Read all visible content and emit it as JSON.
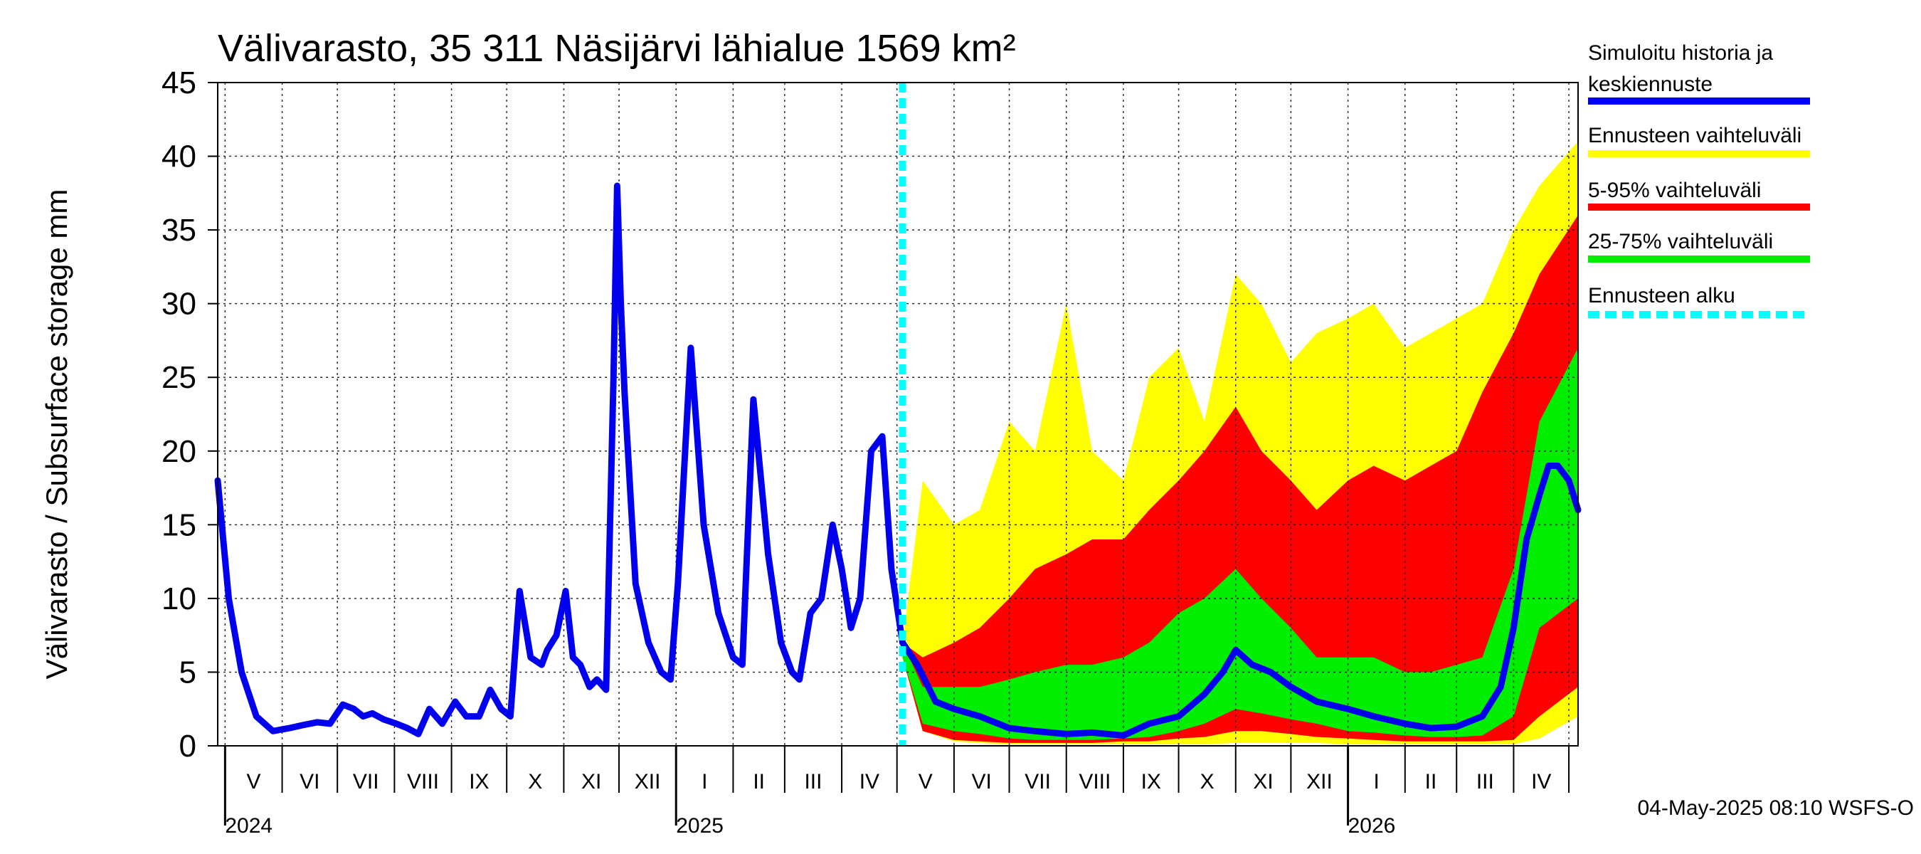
{
  "chart_data": {
    "type": "area",
    "title": "Välivarasto, 35 311 Näsijärvi lähialue 1569 km²",
    "ylabel": "Välivarasto / Subsurface storage  mm",
    "xlabel": "",
    "ylim": [
      0,
      45
    ],
    "yticks": [
      "0",
      "5",
      "10",
      "15",
      "20",
      "25",
      "30",
      "35",
      "40",
      "45"
    ],
    "grid": true,
    "x_range": [
      "2024-04-27",
      "2026-05-06"
    ],
    "forecast_start": "2025-05-04",
    "month_labels": [
      {
        "label": "V",
        "date": "2024-05-01"
      },
      {
        "label": "VI",
        "date": "2024-06-01"
      },
      {
        "label": "VII",
        "date": "2024-07-01"
      },
      {
        "label": "VIII",
        "date": "2024-08-01"
      },
      {
        "label": "IX",
        "date": "2024-09-01"
      },
      {
        "label": "X",
        "date": "2024-10-01"
      },
      {
        "label": "XI",
        "date": "2024-11-01"
      },
      {
        "label": "XII",
        "date": "2024-12-01"
      },
      {
        "label": "I",
        "date": "2025-01-01"
      },
      {
        "label": "II",
        "date": "2025-02-01"
      },
      {
        "label": "III",
        "date": "2025-03-01"
      },
      {
        "label": "IV",
        "date": "2025-04-01"
      },
      {
        "label": "V",
        "date": "2025-05-01"
      },
      {
        "label": "VI",
        "date": "2025-06-01"
      },
      {
        "label": "VII",
        "date": "2025-07-01"
      },
      {
        "label": "VIII",
        "date": "2025-08-01"
      },
      {
        "label": "IX",
        "date": "2025-09-01"
      },
      {
        "label": "X",
        "date": "2025-10-01"
      },
      {
        "label": "XI",
        "date": "2025-11-01"
      },
      {
        "label": "XII",
        "date": "2025-12-01"
      },
      {
        "label": "I",
        "date": "2026-01-01"
      },
      {
        "label": "II",
        "date": "2026-02-01"
      },
      {
        "label": "III",
        "date": "2026-03-01"
      },
      {
        "label": "IV",
        "date": "2026-04-01"
      }
    ],
    "month_boundaries": [
      "2024-05-01",
      "2024-06-01",
      "2024-07-01",
      "2024-08-01",
      "2024-09-01",
      "2024-10-01",
      "2024-11-01",
      "2024-12-01",
      "2025-01-01",
      "2025-02-01",
      "2025-03-01",
      "2025-04-01",
      "2025-05-01",
      "2025-06-01",
      "2025-07-01",
      "2025-08-01",
      "2025-09-01",
      "2025-10-01",
      "2025-11-01",
      "2025-12-01",
      "2026-01-01",
      "2026-02-01",
      "2026-03-01",
      "2026-04-01",
      "2026-05-01"
    ],
    "year_labels": [
      {
        "label": "2024",
        "date": "2024-05-01"
      },
      {
        "label": "2025",
        "date": "2025-01-01"
      },
      {
        "label": "2026",
        "date": "2026-01-01"
      }
    ],
    "legend": [
      {
        "label_lines": [
          "Simuloitu historia ja",
          "keskiennuste"
        ],
        "color": "#0000ee",
        "style": "solid"
      },
      {
        "label_lines": [
          "Ennusteen vaihteluväli"
        ],
        "color": "#ffff00",
        "style": "solid"
      },
      {
        "label_lines": [
          "5-95% vaihteluväli"
        ],
        "color": "#ff0000",
        "style": "solid"
      },
      {
        "label_lines": [
          "25-75% vaihteluväli"
        ],
        "color": "#00ee00",
        "style": "solid"
      },
      {
        "label_lines": [
          "Ennusteen alku"
        ],
        "color": "#00ffff",
        "style": "dashed"
      }
    ],
    "legend_position": "right",
    "footer": "04-May-2025 08:10 WSFS-O",
    "series": [
      {
        "name": "Simuloitu historia ja keskiennuste",
        "color": "#0000ee",
        "x": [
          "2024-04-27",
          "2024-05-03",
          "2024-05-10",
          "2024-05-18",
          "2024-05-27",
          "2024-06-05",
          "2024-06-12",
          "2024-06-20",
          "2024-06-27",
          "2024-07-04",
          "2024-07-10",
          "2024-07-15",
          "2024-07-20",
          "2024-07-26",
          "2024-08-02",
          "2024-08-08",
          "2024-08-14",
          "2024-08-20",
          "2024-08-27",
          "2024-09-03",
          "2024-09-09",
          "2024-09-16",
          "2024-09-22",
          "2024-09-28",
          "2024-10-03",
          "2024-10-08",
          "2024-10-14",
          "2024-10-20",
          "2024-10-23",
          "2024-10-28",
          "2024-11-02",
          "2024-11-06",
          "2024-11-10",
          "2024-11-15",
          "2024-11-19",
          "2024-11-24",
          "2024-11-28",
          "2024-11-30",
          "2024-12-02",
          "2024-12-04",
          "2024-12-10",
          "2024-12-17",
          "2024-12-24",
          "2024-12-29",
          "2025-01-02",
          "2025-01-09",
          "2025-01-16",
          "2025-01-24",
          "2025-02-01",
          "2025-02-06",
          "2025-02-12",
          "2025-02-20",
          "2025-02-27",
          "2025-03-05",
          "2025-03-09",
          "2025-03-15",
          "2025-03-21",
          "2025-03-27",
          "2025-04-01",
          "2025-04-06",
          "2025-04-11",
          "2025-04-17",
          "2025-04-23",
          "2025-04-28",
          "2025-05-04",
          "2025-05-12",
          "2025-05-22",
          "2025-06-01",
          "2025-06-15",
          "2025-07-01",
          "2025-07-15",
          "2025-08-01",
          "2025-08-15",
          "2025-09-01",
          "2025-09-15",
          "2025-10-01",
          "2025-10-15",
          "2025-10-25",
          "2025-11-01",
          "2025-11-10",
          "2025-11-20",
          "2025-12-01",
          "2025-12-15",
          "2026-01-01",
          "2026-01-15",
          "2026-02-01",
          "2026-02-15",
          "2026-03-01",
          "2026-03-15",
          "2026-03-25",
          "2026-04-01",
          "2026-04-08",
          "2026-04-15",
          "2026-04-20",
          "2026-04-25",
          "2026-05-01",
          "2026-05-06"
        ],
        "y": [
          18,
          10,
          5,
          2,
          1,
          1.2,
          1.4,
          1.6,
          1.5,
          2.8,
          2.5,
          2,
          2.2,
          1.8,
          1.5,
          1.2,
          0.8,
          2.5,
          1.5,
          3,
          2,
          2,
          3.8,
          2.5,
          2,
          10.5,
          6,
          5.5,
          6.5,
          7.5,
          10.5,
          6,
          5.5,
          4,
          4.5,
          3.8,
          25,
          38,
          30,
          24,
          11,
          7,
          5,
          4.5,
          11,
          27,
          15,
          9,
          6,
          5.5,
          23.5,
          13,
          7,
          5,
          4.5,
          9,
          10,
          15,
          12,
          8,
          10,
          20,
          21,
          12,
          7,
          5.5,
          3,
          2.5,
          2,
          1.2,
          1,
          0.8,
          0.9,
          0.7,
          1.5,
          2,
          3.5,
          5,
          6.5,
          5.5,
          5,
          4,
          3,
          2.5,
          2,
          1.5,
          1.2,
          1.3,
          2,
          4,
          8,
          14,
          17,
          19,
          19,
          18,
          16
        ]
      },
      {
        "name": "Ennusteen vaihteluväli",
        "color": "#ffff00",
        "x": [
          "2025-05-04",
          "2025-05-15",
          "2025-06-01",
          "2025-06-15",
          "2025-07-01",
          "2025-07-15",
          "2025-08-01",
          "2025-08-15",
          "2025-09-01",
          "2025-09-15",
          "2025-10-01",
          "2025-10-15",
          "2025-11-01",
          "2025-11-15",
          "2025-12-01",
          "2025-12-15",
          "2026-01-01",
          "2026-01-15",
          "2026-02-01",
          "2026-02-15",
          "2026-03-01",
          "2026-03-15",
          "2026-04-01",
          "2026-04-15",
          "2026-05-06"
        ],
        "low": [
          6,
          1,
          0.3,
          0.2,
          0.1,
          0.1,
          0.1,
          0.1,
          0.1,
          0.1,
          0.1,
          0.1,
          0.2,
          0.2,
          0.2,
          0.2,
          0.1,
          0.1,
          0.1,
          0.1,
          0.1,
          0.1,
          0.1,
          0.5,
          2
        ],
        "high": [
          7,
          18,
          15,
          16,
          22,
          20,
          30,
          20,
          18,
          25,
          27,
          22,
          32,
          30,
          26,
          28,
          29,
          30,
          27,
          28,
          29,
          30,
          35,
          38,
          41
        ]
      },
      {
        "name": "5-95% vaihteluväli",
        "color": "#ff0000",
        "x": [
          "2025-05-04",
          "2025-05-15",
          "2025-06-01",
          "2025-06-15",
          "2025-07-01",
          "2025-07-15",
          "2025-08-01",
          "2025-08-15",
          "2025-09-01",
          "2025-09-15",
          "2025-10-01",
          "2025-10-15",
          "2025-11-01",
          "2025-11-15",
          "2025-12-01",
          "2025-12-15",
          "2026-01-01",
          "2026-01-15",
          "2026-02-01",
          "2026-02-15",
          "2026-03-01",
          "2026-03-15",
          "2026-04-01",
          "2026-04-15",
          "2026-05-06"
        ],
        "low": [
          6,
          1,
          0.4,
          0.3,
          0.2,
          0.2,
          0.2,
          0.2,
          0.3,
          0.3,
          0.5,
          0.6,
          1,
          1,
          0.8,
          0.6,
          0.5,
          0.4,
          0.3,
          0.3,
          0.3,
          0.3,
          0.4,
          2,
          4
        ],
        "high": [
          7,
          6,
          7,
          8,
          10,
          12,
          13,
          14,
          14,
          16,
          18,
          20,
          23,
          20,
          18,
          16,
          18,
          19,
          18,
          19,
          20,
          24,
          28,
          32,
          36
        ]
      },
      {
        "name": "25-75% vaihteluväli",
        "color": "#00ee00",
        "x": [
          "2025-05-04",
          "2025-05-15",
          "2025-06-01",
          "2025-06-15",
          "2025-07-01",
          "2025-07-15",
          "2025-08-01",
          "2025-08-15",
          "2025-09-01",
          "2025-09-15",
          "2025-10-01",
          "2025-10-15",
          "2025-11-01",
          "2025-11-15",
          "2025-12-01",
          "2025-12-15",
          "2026-01-01",
          "2026-01-15",
          "2026-02-01",
          "2026-02-15",
          "2026-03-01",
          "2026-03-15",
          "2026-04-01",
          "2026-04-15",
          "2026-05-06"
        ],
        "low": [
          6,
          1.5,
          1,
          0.8,
          0.5,
          0.4,
          0.4,
          0.4,
          0.5,
          0.6,
          1,
          1.5,
          2.5,
          2.2,
          1.8,
          1.5,
          1,
          0.9,
          0.7,
          0.6,
          0.6,
          0.7,
          2,
          8,
          10
        ],
        "high": [
          7,
          4,
          4,
          4,
          4.5,
          5,
          5.5,
          5.5,
          6,
          7,
          9,
          10,
          12,
          10,
          8,
          6,
          6,
          6,
          5,
          5,
          5.5,
          6,
          12,
          22,
          27
        ]
      }
    ]
  }
}
